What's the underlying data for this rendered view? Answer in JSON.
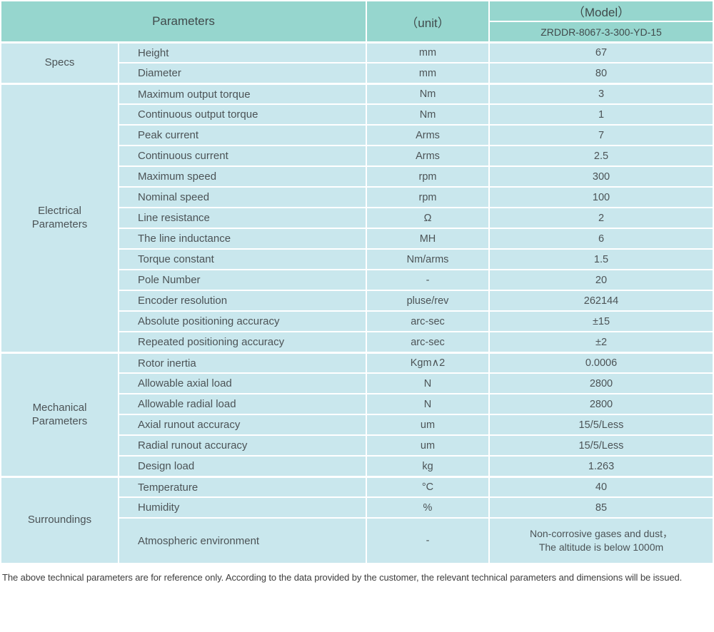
{
  "header": {
    "parameters_label": "Parameters",
    "unit_label": "（unit）",
    "model_label": "（Model）",
    "model_value": "ZRDDR-8067-3-300-YD-15"
  },
  "sections": [
    {
      "group": "Specs",
      "rows": [
        {
          "name": "Height",
          "unit": "mm",
          "value": "67"
        },
        {
          "name": "Diameter",
          "unit": "mm",
          "value": "80"
        }
      ]
    },
    {
      "group": "Electrical\nParameters",
      "rows": [
        {
          "name": "Maximum output torque",
          "unit": "Nm",
          "value": "3"
        },
        {
          "name": "Continuous output torque",
          "unit": "Nm",
          "value": "1"
        },
        {
          "name": "Peak current",
          "unit": "Arms",
          "value": "7"
        },
        {
          "name": "Continuous current",
          "unit": "Arms",
          "value": "2.5"
        },
        {
          "name": "Maximum speed",
          "unit": "rpm",
          "value": "300"
        },
        {
          "name": "Nominal speed",
          "unit": "rpm",
          "value": "100"
        },
        {
          "name": "Line resistance",
          "unit": "Ω",
          "value": "2"
        },
        {
          "name": "The line inductance",
          "unit": "MH",
          "value": "6"
        },
        {
          "name": "Torque constant",
          "unit": "Nm/arms",
          "value": "1.5"
        },
        {
          "name": "Pole Number",
          "unit": "-",
          "value": "20"
        },
        {
          "name": "Encoder resolution",
          "unit": "pluse/rev",
          "value": "262144"
        },
        {
          "name": "Absolute positioning accuracy",
          "unit": "arc-sec",
          "value": "±15"
        },
        {
          "name": "Repeated positioning accuracy",
          "unit": "arc-sec",
          "value": "±2"
        }
      ]
    },
    {
      "group": "Mechanical\nParameters",
      "rows": [
        {
          "name": "Rotor inertia",
          "unit": "Kgm∧2",
          "value": "0.0006"
        },
        {
          "name": "Allowable axial load",
          "unit": "N",
          "value": "2800"
        },
        {
          "name": "Allowable radial load",
          "unit": "N",
          "value": "2800"
        },
        {
          "name": "Axial runout accuracy",
          "unit": "um",
          "value": "15/5/Less"
        },
        {
          "name": "Radial runout accuracy",
          "unit": "um",
          "value": "15/5/Less"
        },
        {
          "name": "Design load",
          "unit": "kg",
          "value": "1.263"
        }
      ]
    },
    {
      "group": "Surroundings",
      "rows": [
        {
          "name": "Temperature",
          "unit": "°C",
          "value": "40"
        },
        {
          "name": "Humidity",
          "unit": "%",
          "value": "85"
        },
        {
          "name": "Atmospheric environment",
          "unit": "-",
          "value": "Non-corrosive gases and dust，\nThe altitude is below 1000m"
        }
      ]
    }
  ],
  "footer": {
    "note": "The above technical parameters are for reference only. According to the data provided by the customer, the relevant technical parameters and dimensions will be issued."
  },
  "colors": {
    "header_bg": "#96d6ce",
    "row_bg": "#c9e7ed",
    "header_text": "#404a4b",
    "body_text": "#4c5356"
  }
}
